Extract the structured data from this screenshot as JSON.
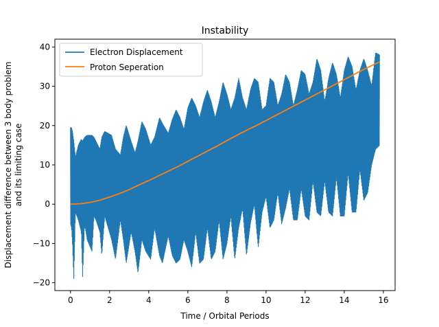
{
  "chart_data": {
    "type": "line",
    "title": "Instability",
    "xlabel": "Time / Orbital Periods",
    "ylabel_line1": "Displacement difference between 3 body problem",
    "ylabel_line2": "and its limiting case",
    "xlim": [
      -0.8,
      16.6
    ],
    "ylim": [
      -22,
      42
    ],
    "xticks": [
      0,
      2,
      4,
      6,
      8,
      10,
      12,
      14,
      16
    ],
    "yticks": [
      -20,
      -10,
      0,
      10,
      20,
      30,
      40
    ],
    "legend_position": "top-left",
    "series": [
      {
        "name": "Electron Displacement",
        "color": "#1f77b4",
        "style": "dense-oscillation",
        "x": [
          0.0,
          0.05,
          0.1,
          0.17,
          0.25,
          0.4,
          0.55,
          0.62,
          0.72,
          0.85,
          1.1,
          1.2,
          1.3,
          1.5,
          1.6,
          1.75,
          2.1,
          2.3,
          2.55,
          2.7,
          2.85,
          3.1,
          3.3,
          3.45,
          3.65,
          3.85,
          4.1,
          4.3,
          4.55,
          4.7,
          5.0,
          5.2,
          5.4,
          5.6,
          5.8,
          6.0,
          6.2,
          6.4,
          6.6,
          6.8,
          7.0,
          7.2,
          7.4,
          7.6,
          7.8,
          8.0,
          8.2,
          8.4,
          8.6,
          8.8,
          9.0,
          9.2,
          9.4,
          9.6,
          9.8,
          10.0,
          10.2,
          10.4,
          10.6,
          10.8,
          11.0,
          11.2,
          11.4,
          11.6,
          11.8,
          12.0,
          12.2,
          12.4,
          12.6,
          12.8,
          13.0,
          13.2,
          13.4,
          13.6,
          13.8,
          14.0,
          14.2,
          14.4,
          14.6,
          14.8,
          15.0,
          15.2,
          15.4,
          15.6,
          15.8
        ],
        "upper": [
          19.5,
          19.5,
          18.5,
          16,
          12,
          15,
          16.5,
          16,
          17,
          17.5,
          17.5,
          17,
          16,
          14,
          17,
          18.5,
          17.5,
          14,
          12.5,
          17,
          20,
          16,
          13,
          16,
          21,
          19,
          15,
          17,
          22,
          20.5,
          18,
          21.5,
          24,
          22,
          19,
          24.5,
          27,
          25,
          22,
          26,
          29,
          26,
          22,
          26,
          31,
          28,
          24,
          27,
          32,
          27,
          24,
          29,
          32,
          31,
          24,
          25,
          32,
          31,
          25,
          28,
          33,
          31,
          25,
          29,
          34,
          33,
          28,
          31,
          37,
          34,
          26,
          32,
          36,
          33,
          27,
          34,
          37.5,
          35,
          29,
          34,
          37,
          34,
          30,
          38.5,
          38
        ],
        "lower": [
          -5,
          -6,
          -10,
          -19,
          -2,
          -4,
          -7,
          -18.5,
          -5,
          -9,
          -12,
          -3,
          -4,
          -7,
          -13,
          -3,
          -9,
          -14,
          -4,
          -9,
          -15,
          -7,
          -12,
          -17.5,
          -9,
          -12,
          -14,
          -6,
          -13,
          -15,
          -8,
          -13,
          -15,
          -14,
          -9,
          -12,
          -16,
          -7,
          -15,
          -14,
          -6,
          -14,
          -12,
          -4,
          -14,
          -10,
          -3,
          -14,
          -6,
          -1,
          -13,
          -5,
          0,
          -11,
          -2,
          2,
          -6,
          -4,
          3,
          -5,
          -1,
          4,
          -4,
          -4,
          4,
          -3,
          -4,
          6,
          -2,
          -3,
          6,
          -2,
          -3,
          7,
          -3,
          -3,
          8,
          -2,
          -2,
          9,
          1,
          3,
          10,
          14,
          15
        ]
      },
      {
        "name": "Proton Seperation",
        "color": "#ff7f0e",
        "style": "line",
        "x": [
          0,
          0.5,
          1,
          1.5,
          2,
          2.5,
          3,
          3.5,
          4,
          4.5,
          5,
          5.5,
          6,
          6.5,
          7,
          7.5,
          8,
          8.5,
          9,
          9.5,
          10,
          10.5,
          11,
          11.5,
          12,
          12.5,
          13,
          13.5,
          14,
          14.5,
          15,
          15.5,
          15.8
        ],
        "y": [
          0,
          0.1,
          0.45,
          1.0,
          1.8,
          2.7,
          3.7,
          4.9,
          6.0,
          7.2,
          8.4,
          9.6,
          10.9,
          12.2,
          13.5,
          14.8,
          16.2,
          17.5,
          18.8,
          20.0,
          21.3,
          22.6,
          23.9,
          25.2,
          26.5,
          27.8,
          29.1,
          30.4,
          31.7,
          33.0,
          34.3,
          35.5,
          36.2
        ]
      }
    ]
  }
}
